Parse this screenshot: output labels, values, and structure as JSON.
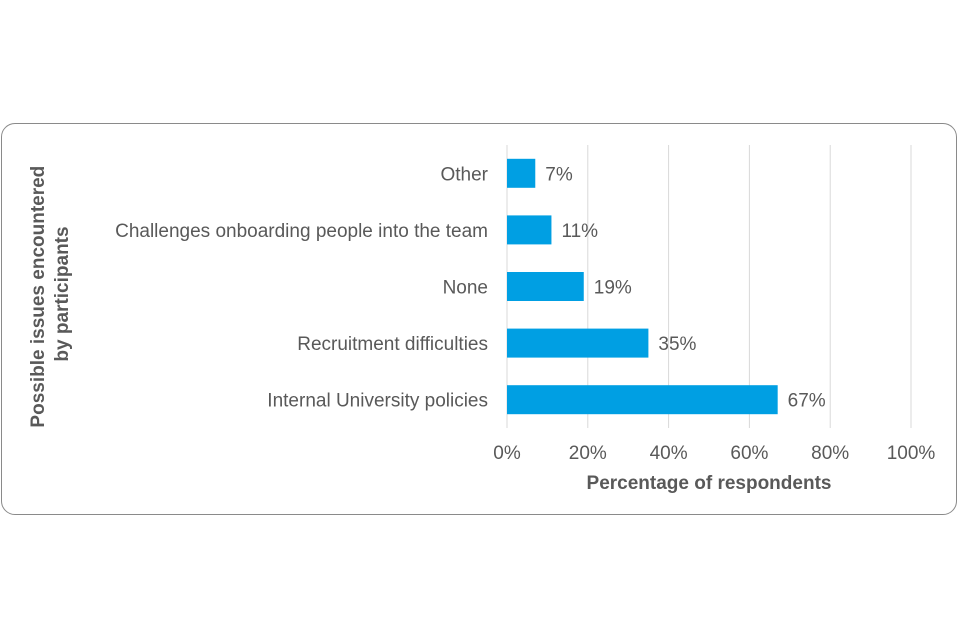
{
  "colors": {
    "bar": "#009fe3",
    "text": "#595959",
    "grid": "#d9d9d9",
    "border": "#8a8a8a"
  },
  "chart_data": {
    "type": "bar",
    "orientation": "horizontal",
    "categories": [
      "Other",
      "Challenges onboarding people into the team",
      "None",
      "Recruitment difficulties",
      "Internal University policies"
    ],
    "values": [
      7,
      11,
      19,
      35,
      67
    ],
    "data_labels": [
      "7%",
      "11%",
      "19%",
      "35%",
      "67%"
    ],
    "xlabel": "Percentage of respondents",
    "ylabel": "Possible issues encountered by participants",
    "ylabel_lines": [
      "Possible issues encountered",
      "by participants"
    ],
    "xlim": [
      0,
      100
    ],
    "xticks": [
      0,
      20,
      40,
      60,
      80,
      100
    ],
    "xtick_labels": [
      "0%",
      "20%",
      "40%",
      "60%",
      "80%",
      "100%"
    ],
    "grid": "vertical"
  }
}
